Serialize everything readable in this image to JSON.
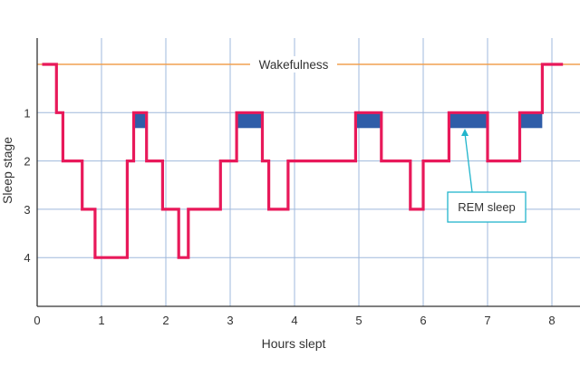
{
  "chart_data": {
    "type": "line",
    "xlabel": "Hours slept",
    "ylabel": "Sleep stage",
    "xlim": [
      0,
      8.5
    ],
    "x_ticks": [
      "0",
      "1",
      "2",
      "3",
      "4",
      "5",
      "6",
      "7",
      "8"
    ],
    "y_ticks": [
      {
        "value": 1,
        "label": "1"
      },
      {
        "value": 2,
        "label": "2"
      },
      {
        "value": 3,
        "label": "3"
      },
      {
        "value": 4,
        "label": "4"
      }
    ],
    "grid": true,
    "series": [
      {
        "kind": "step",
        "points": [
          [
            0.1,
            0.0
          ],
          [
            0.3,
            0.0
          ],
          [
            0.3,
            1
          ],
          [
            0.4,
            1
          ],
          [
            0.4,
            2
          ],
          [
            0.7,
            2
          ],
          [
            0.7,
            3
          ],
          [
            0.9,
            3
          ],
          [
            0.9,
            4
          ],
          [
            1.4,
            4
          ],
          [
            1.4,
            2
          ],
          [
            1.5,
            2
          ],
          [
            1.5,
            1
          ],
          [
            1.7,
            1
          ],
          [
            1.7,
            2
          ],
          [
            1.95,
            2
          ],
          [
            1.95,
            3
          ],
          [
            2.2,
            3
          ],
          [
            2.2,
            4
          ],
          [
            2.35,
            4
          ],
          [
            2.35,
            3
          ],
          [
            2.85,
            3
          ],
          [
            2.85,
            2
          ],
          [
            3.1,
            2
          ],
          [
            3.1,
            1
          ],
          [
            3.5,
            1
          ],
          [
            3.5,
            2
          ],
          [
            3.6,
            2
          ],
          [
            3.6,
            3
          ],
          [
            3.9,
            3
          ],
          [
            3.9,
            2
          ],
          [
            4.95,
            2
          ],
          [
            4.95,
            1
          ],
          [
            5.35,
            1
          ],
          [
            5.35,
            2
          ],
          [
            5.8,
            2
          ],
          [
            5.8,
            3
          ],
          [
            6.0,
            3
          ],
          [
            6.0,
            2
          ],
          [
            6.4,
            2
          ],
          [
            6.4,
            1
          ],
          [
            7.0,
            1
          ],
          [
            7.0,
            2
          ],
          [
            7.5,
            2
          ],
          [
            7.5,
            1
          ],
          [
            7.85,
            1
          ],
          [
            7.85,
            0.0
          ],
          [
            8.15,
            0.0
          ]
        ]
      }
    ],
    "rem_periods": [
      {
        "start": 1.5,
        "end": 1.7
      },
      {
        "start": 3.1,
        "end": 3.5
      },
      {
        "start": 4.95,
        "end": 5.35
      },
      {
        "start": 6.4,
        "end": 7.0
      },
      {
        "start": 7.5,
        "end": 7.85
      }
    ],
    "wakefulness_label": "Wakefulness",
    "rem_label": "REM sleep",
    "colors": {
      "stage_line": "#e8195a",
      "rem_fill": "#2f5da8",
      "wakefulness_line": "#f0a050",
      "grid": "#9fb8dc",
      "axis": "#333333",
      "callout": "#22b5cc"
    }
  }
}
